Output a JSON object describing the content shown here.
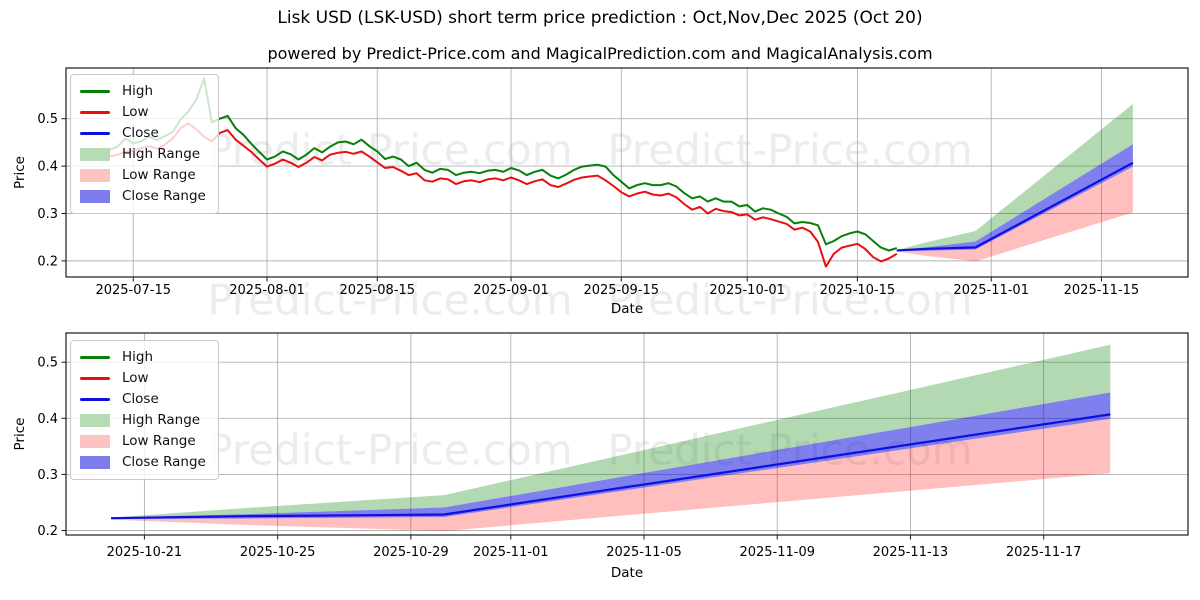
{
  "title": "Lisk USD (LSK-USD) short term price prediction : Oct,Nov,Dec 2025 (Oct 20)",
  "subtitle": "powered by Predict-Price.com and MagicalPrediction.com and MagicalAnalysis.com",
  "watermark": {
    "text": "Predict-Price.com",
    "color": "#ececec"
  },
  "colors": {
    "high_line": "#087f08",
    "low_line": "#e90f0f",
    "close_line": "#0f0fe0",
    "high_fill": "rgba(0,128,0,0.30)",
    "low_fill": "rgba(255,0,0,0.25)",
    "close_fill": "rgba(10,10,220,0.52)",
    "high_swatch": "#b5dcb5",
    "low_swatch": "#fcc3c3",
    "close_swatch": "#7d7dee",
    "grid": "#b0b0b0",
    "spine": "#1a1a1a",
    "text": "#000000"
  },
  "legend": {
    "items": [
      {
        "label": "High",
        "swatch": "line"
      },
      {
        "label": "Low",
        "swatch": "line"
      },
      {
        "label": "Close",
        "swatch": "line"
      },
      {
        "label": "High Range",
        "swatch": "patch"
      },
      {
        "label": "Low Range",
        "swatch": "patch"
      },
      {
        "label": "Close Range",
        "swatch": "patch"
      }
    ]
  },
  "chart_data": [
    {
      "type": "line",
      "title": "historical prices with short-term forecast fan",
      "xlabel": "Date",
      "ylabel": "Price",
      "grid": true,
      "legend_position": "upper-left",
      "xlim": [
        "2025-07-06T11:00",
        "2025-11-26T00:00"
      ],
      "ylim": [
        0.166,
        0.607
      ],
      "x_ticks": [
        "2025-07-15",
        "2025-08-01",
        "2025-08-15",
        "2025-09-01",
        "2025-09-15",
        "2025-10-01",
        "2025-10-15",
        "2025-11-01",
        "2025-11-15"
      ],
      "y_ticks": [
        0.2,
        0.3,
        0.4,
        0.5
      ],
      "series": {
        "high": {
          "name": "High",
          "start": "2025-07-12",
          "step_days": 1,
          "values": [
            0.434,
            0.441,
            0.458,
            0.448,
            0.452,
            0.462,
            0.455,
            0.463,
            0.472,
            0.498,
            0.515,
            0.54,
            0.585,
            0.492,
            0.5,
            0.506,
            0.48,
            0.466,
            0.447,
            0.43,
            0.414,
            0.42,
            0.431,
            0.425,
            0.414,
            0.424,
            0.438,
            0.429,
            0.441,
            0.45,
            0.452,
            0.446,
            0.456,
            0.442,
            0.431,
            0.415,
            0.42,
            0.414,
            0.4,
            0.407,
            0.392,
            0.386,
            0.394,
            0.392,
            0.381,
            0.386,
            0.388,
            0.385,
            0.39,
            0.392,
            0.388,
            0.396,
            0.391,
            0.381,
            0.388,
            0.392,
            0.38,
            0.374,
            0.382,
            0.392,
            0.399,
            0.401,
            0.403,
            0.399,
            0.381,
            0.367,
            0.353,
            0.36,
            0.364,
            0.36,
            0.36,
            0.364,
            0.357,
            0.343,
            0.332,
            0.336,
            0.325,
            0.332,
            0.325,
            0.325,
            0.315,
            0.318,
            0.304,
            0.311,
            0.308,
            0.3,
            0.293,
            0.279,
            0.282,
            0.28,
            0.275,
            0.235,
            0.242,
            0.252,
            0.258,
            0.262,
            0.256,
            0.242,
            0.228,
            0.222,
            0.227
          ]
        },
        "low": {
          "name": "Low",
          "start": "2025-07-12",
          "step_days": 1,
          "values": [
            0.42,
            0.424,
            0.43,
            0.432,
            0.438,
            0.442,
            0.437,
            0.445,
            0.458,
            0.48,
            0.49,
            0.478,
            0.462,
            0.452,
            0.47,
            0.476,
            0.456,
            0.443,
            0.43,
            0.414,
            0.399,
            0.405,
            0.414,
            0.407,
            0.398,
            0.407,
            0.419,
            0.412,
            0.424,
            0.428,
            0.43,
            0.426,
            0.431,
            0.42,
            0.408,
            0.396,
            0.398,
            0.39,
            0.381,
            0.385,
            0.37,
            0.367,
            0.374,
            0.372,
            0.362,
            0.368,
            0.37,
            0.366,
            0.372,
            0.374,
            0.37,
            0.376,
            0.37,
            0.362,
            0.368,
            0.372,
            0.36,
            0.356,
            0.363,
            0.371,
            0.376,
            0.378,
            0.38,
            0.37,
            0.358,
            0.345,
            0.336,
            0.342,
            0.346,
            0.34,
            0.338,
            0.342,
            0.334,
            0.32,
            0.308,
            0.314,
            0.3,
            0.31,
            0.305,
            0.303,
            0.296,
            0.298,
            0.287,
            0.292,
            0.288,
            0.283,
            0.278,
            0.266,
            0.27,
            0.262,
            0.24,
            0.188,
            0.215,
            0.228,
            0.232,
            0.236,
            0.225,
            0.208,
            0.199,
            0.205,
            0.215
          ]
        },
        "close": {
          "name": "Close",
          "dates": [
            "2025-10-20",
            "2025-10-24",
            "2025-10-30",
            "2025-11-19"
          ],
          "values": [
            0.222,
            0.2255,
            0.2285,
            0.407
          ]
        },
        "bands": {
          "dates": [
            "2025-10-20",
            "2025-10-24",
            "2025-10-30",
            "2025-11-19"
          ],
          "high_top": [
            0.223,
            0.24,
            0.263,
            0.531
          ],
          "close_top": [
            0.2235,
            0.229,
            0.241,
            0.446
          ],
          "close_bottom": [
            0.2205,
            0.2215,
            0.224,
            0.399
          ],
          "low_bottom": [
            0.2195,
            0.21,
            0.199,
            0.302
          ]
        }
      }
    },
    {
      "type": "line",
      "title": "forecast detail (Oct 20 - Nov 19)",
      "xlabel": "Date",
      "ylabel": "Price",
      "grid": true,
      "legend_position": "upper-left",
      "xlim": [
        "2025-10-18T15:30",
        "2025-11-21T08:00"
      ],
      "ylim": [
        0.192,
        0.552
      ],
      "x_ticks": [
        "2025-10-21",
        "2025-10-25",
        "2025-10-29",
        "2025-11-01",
        "2025-11-05",
        "2025-11-09",
        "2025-11-13",
        "2025-11-17"
      ],
      "y_ticks": [
        0.2,
        0.3,
        0.4,
        0.5
      ],
      "series": {
        "high": {
          "name": "High",
          "start": "2025-10-20",
          "step_days": 1,
          "values": [
            0.227
          ]
        },
        "low": {
          "name": "Low",
          "start": "2025-10-20",
          "step_days": 1,
          "values": [
            0.215
          ]
        },
        "close": {
          "name": "Close",
          "dates": [
            "2025-10-20",
            "2025-10-24",
            "2025-10-30",
            "2025-11-19"
          ],
          "values": [
            0.222,
            0.2255,
            0.2285,
            0.407
          ]
        },
        "bands": {
          "dates": [
            "2025-10-20",
            "2025-10-24",
            "2025-10-30",
            "2025-11-19"
          ],
          "high_top": [
            0.223,
            0.24,
            0.263,
            0.531
          ],
          "close_top": [
            0.2235,
            0.229,
            0.241,
            0.446
          ],
          "close_bottom": [
            0.2205,
            0.2215,
            0.224,
            0.399
          ],
          "low_bottom": [
            0.2195,
            0.21,
            0.199,
            0.302
          ]
        }
      }
    }
  ]
}
